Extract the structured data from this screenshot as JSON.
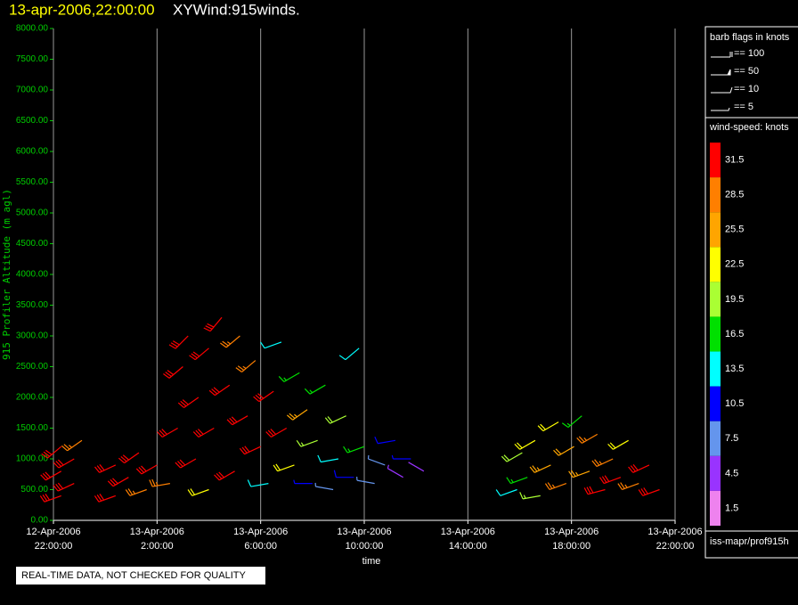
{
  "chart_data": {
    "type": "wind-barb",
    "title": "13-apr-2006,22:00:00",
    "subtitle": "XYWind:915winds.",
    "ylabel": "915 Profiler Altitude (m agl)",
    "xlabel": "time",
    "xlim": [
      0,
      24
    ],
    "ylim": [
      0,
      8000
    ],
    "xticks": [
      {
        "value": 0,
        "label": [
          "12-Apr-2006",
          "22:00:00"
        ]
      },
      {
        "value": 4,
        "label": [
          "13-Apr-2006",
          "2:00:00"
        ]
      },
      {
        "value": 8,
        "label": [
          "13-Apr-2006",
          "6:00:00"
        ]
      },
      {
        "value": 12,
        "label": [
          "13-Apr-2006",
          "10:00:00"
        ]
      },
      {
        "value": 16,
        "label": [
          "13-Apr-2006",
          "14:00:00"
        ]
      },
      {
        "value": 20,
        "label": [
          "13-Apr-2006",
          "18:00:00"
        ]
      },
      {
        "value": 24,
        "label": [
          "13-Apr-2006",
          "22:00:00"
        ]
      }
    ],
    "yticks": [
      {
        "value": 0,
        "label": "0.00"
      },
      {
        "value": 500,
        "label": "500.00"
      },
      {
        "value": 1000,
        "label": "1000.00"
      },
      {
        "value": 1500,
        "label": "1500.00"
      },
      {
        "value": 2000,
        "label": "2000.00"
      },
      {
        "value": 2500,
        "label": "2500.00"
      },
      {
        "value": 3000,
        "label": "3000.00"
      },
      {
        "value": 3500,
        "label": "3500.00"
      },
      {
        "value": 4000,
        "label": "4000.00"
      },
      {
        "value": 4500,
        "label": "4500.00"
      },
      {
        "value": 5000,
        "label": "5000.00"
      },
      {
        "value": 5500,
        "label": "5500.00"
      },
      {
        "value": 6000,
        "label": "6000.00"
      },
      {
        "value": 6500,
        "label": "6500.00"
      },
      {
        "value": 7000,
        "label": "7000.00"
      },
      {
        "value": 7500,
        "label": "7500.00"
      },
      {
        "value": 8000,
        "label": "8000.00"
      }
    ],
    "grid": true,
    "x": [
      0.3,
      0.3,
      0.3,
      0.8,
      0.8,
      1.1,
      2.4,
      2.4,
      2.9,
      3.3,
      3.6,
      4.0,
      4.5,
      4.8,
      5.0,
      5.2,
      5.5,
      5.6,
      6.0,
      6.0,
      6.2,
      6.5,
      6.8,
      7.0,
      7.2,
      7.5,
      7.8,
      8.0,
      8.3,
      8.5,
      8.8,
      9.0,
      9.3,
      9.5,
      9.8,
      10.0,
      10.2,
      10.5,
      10.8,
      11.0,
      11.3,
      11.6,
      11.8,
      12.0,
      12.4,
      12.8,
      13.2,
      13.5,
      13.8,
      14.3,
      17.9,
      18.1,
      18.3,
      18.6,
      18.8,
      19.2,
      19.5,
      19.8,
      20.1,
      20.4,
      20.7,
      21.0,
      21.3,
      21.6,
      21.9,
      22.2,
      22.6,
      23.0,
      23.4
    ],
    "y": [
      400,
      800,
      1200,
      600,
      1000,
      1300,
      400,
      900,
      700,
      1100,
      500,
      900,
      600,
      1500,
      2500,
      3000,
      1000,
      2000,
      500,
      2800,
      1500,
      3300,
      2200,
      800,
      3000,
      1700,
      2600,
      1200,
      600,
      2100,
      2900,
      1500,
      900,
      2400,
      1800,
      600,
      1300,
      2200,
      500,
      1000,
      1700,
      700,
      2800,
      1200,
      600,
      900,
      1300,
      700,
      1000,
      800,
      500,
      1100,
      700,
      1300,
      400,
      900,
      1600,
      600,
      1200,
      1700,
      800,
      1400,
      500,
      1000,
      700,
      1300,
      600,
      900,
      500
    ],
    "speed": [
      30,
      31,
      30,
      32,
      31,
      29,
      30,
      31,
      32,
      30,
      29,
      31,
      27,
      31,
      30,
      31,
      32,
      31,
      23,
      30,
      32,
      31,
      31,
      30,
      28,
      31,
      27,
      31,
      14,
      31,
      12,
      30,
      22,
      17,
      26,
      9,
      19,
      15,
      7,
      13,
      20,
      10,
      12,
      16,
      8,
      6,
      11,
      5,
      9,
      4,
      14,
      20,
      16,
      23,
      18,
      25,
      21,
      27,
      24,
      15,
      26,
      29,
      30,
      27,
      31,
      22,
      28,
      31,
      30
    ],
    "direction": [
      250,
      240,
      230,
      245,
      240,
      235,
      250,
      245,
      240,
      235,
      250,
      240,
      260,
      240,
      230,
      225,
      240,
      235,
      250,
      230,
      240,
      220,
      235,
      240,
      230,
      240,
      230,
      245,
      260,
      235,
      250,
      240,
      250,
      240,
      235,
      270,
      250,
      240,
      280,
      260,
      245,
      270,
      230,
      250,
      280,
      290,
      260,
      300,
      270,
      300,
      250,
      240,
      250,
      240,
      260,
      245,
      240,
      250,
      240,
      230,
      250,
      240,
      255,
      245,
      250,
      240,
      250,
      245,
      250
    ],
    "flags_title": "barb flags in knots",
    "flags": [
      "== 100",
      "== 50",
      "== 10",
      "== 5"
    ],
    "colorbar_title": "wind-speed: knots",
    "colorbar_values": [
      31.5,
      28.5,
      25.5,
      22.5,
      19.5,
      16.5,
      13.5,
      10.5,
      7.5,
      4.5,
      1.5
    ],
    "colorbar_colors": [
      "#ff0000",
      "#ff7f00",
      "#ffa500",
      "#ffff00",
      "#aaff33",
      "#00e000",
      "#00ffff",
      "#0000ff",
      "#6495ed",
      "#9933ff",
      "#ee82ee"
    ],
    "source": "iss-mapr/prof915h",
    "notice": "REAL-TIME DATA, NOT CHECKED FOR QUALITY"
  }
}
